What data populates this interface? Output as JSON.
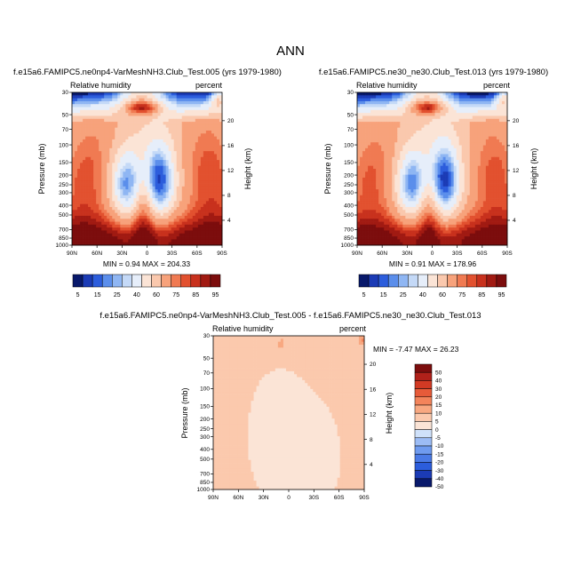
{
  "figure": {
    "title": "ANN"
  },
  "colors": {
    "scale_top": [
      "#08196b",
      "#1b3bb5",
      "#2c5ddc",
      "#5b8eeb",
      "#8fb6f3",
      "#c4d9f7",
      "#e6eefa",
      "#fbe4d6",
      "#fac8ad",
      "#f7a27b",
      "#f07a52",
      "#e2512f",
      "#c8311d",
      "#a11a12",
      "#7c0d0d"
    ],
    "scale_diff": [
      "#08196b",
      "#1b3bb5",
      "#2c5ddc",
      "#4a7ae6",
      "#6f9bef",
      "#9cbcf5",
      "#cfe1fa",
      "#fbe4d6",
      "#fbc9ad",
      "#f8a881",
      "#f3845b",
      "#e75b39",
      "#d23a24",
      "#b0211a",
      "#7c0d0d"
    ]
  },
  "chart_data": [
    {
      "type": "heatmap",
      "id": "left",
      "title": "f.e15a6.FAMIPC5.ne0np4-VarMeshNH3.Club_Test.005 (yrs 1979-1980)",
      "variable_label": "Relative humidity",
      "units_label": "percent",
      "ylabel": "Pressure (mb)",
      "ylabel_right": "Height (km)",
      "x_ticks": [
        "90N",
        "60N",
        "30N",
        "0",
        "30S",
        "60S",
        "90S"
      ],
      "y_ticks": [
        "30",
        "50",
        "70",
        "100",
        "150",
        "200",
        "250",
        "300",
        "400",
        "500",
        "700",
        "850",
        "1000"
      ],
      "y_ticks_right": [
        "20",
        "16",
        "12",
        "8",
        "4"
      ],
      "min_max_text": "MIN =   0.94  MAX = 204.33",
      "colorbar_labels": [
        "5",
        "15",
        "25",
        "40",
        "60",
        "75",
        "85",
        "95"
      ]
    },
    {
      "type": "heatmap",
      "id": "right",
      "title": "f.e15a6.FAMIPC5.ne30_ne30.Club_Test.013 (yrs 1979-1980)",
      "variable_label": "Relative humidity",
      "units_label": "percent",
      "ylabel": "Pressure (mb)",
      "ylabel_right": "Height (km)",
      "x_ticks": [
        "90N",
        "60N",
        "30N",
        "0",
        "30S",
        "60S",
        "90S"
      ],
      "y_ticks": [
        "30",
        "50",
        "70",
        "100",
        "150",
        "200",
        "250",
        "300",
        "400",
        "500",
        "700",
        "850",
        "1000"
      ],
      "y_ticks_right": [
        "20",
        "16",
        "12",
        "8",
        "4"
      ],
      "min_max_text": "MIN =   0.91  MAX = 178.96",
      "colorbar_labels": [
        "5",
        "15",
        "25",
        "40",
        "60",
        "75",
        "85",
        "95"
      ]
    },
    {
      "type": "heatmap",
      "id": "diff",
      "title": "f.e15a6.FAMIPC5.ne0np4-VarMeshNH3.Club_Test.005 - f.e15a6.FAMIPC5.ne30_ne30.Club_Test.013",
      "variable_label": "Relative humidity",
      "units_label": "percent",
      "ylabel": "Pressure (mb)",
      "ylabel_right": "Height (km)",
      "x_ticks": [
        "90N",
        "60N",
        "30N",
        "0",
        "30S",
        "60S",
        "90S"
      ],
      "y_ticks": [
        "30",
        "50",
        "70",
        "100",
        "150",
        "200",
        "250",
        "300",
        "400",
        "500",
        "700",
        "850",
        "1000"
      ],
      "y_ticks_right": [
        "20",
        "16",
        "12",
        "8",
        "4"
      ],
      "min_max_text": "MIN =  -7.47  MAX =  26.23",
      "colorbar_labels": [
        "50",
        "40",
        "30",
        "20",
        "15",
        "10",
        "5",
        "0",
        "-5",
        "-10",
        "-15",
        "-20",
        "-30",
        "-40",
        "-50"
      ]
    }
  ]
}
